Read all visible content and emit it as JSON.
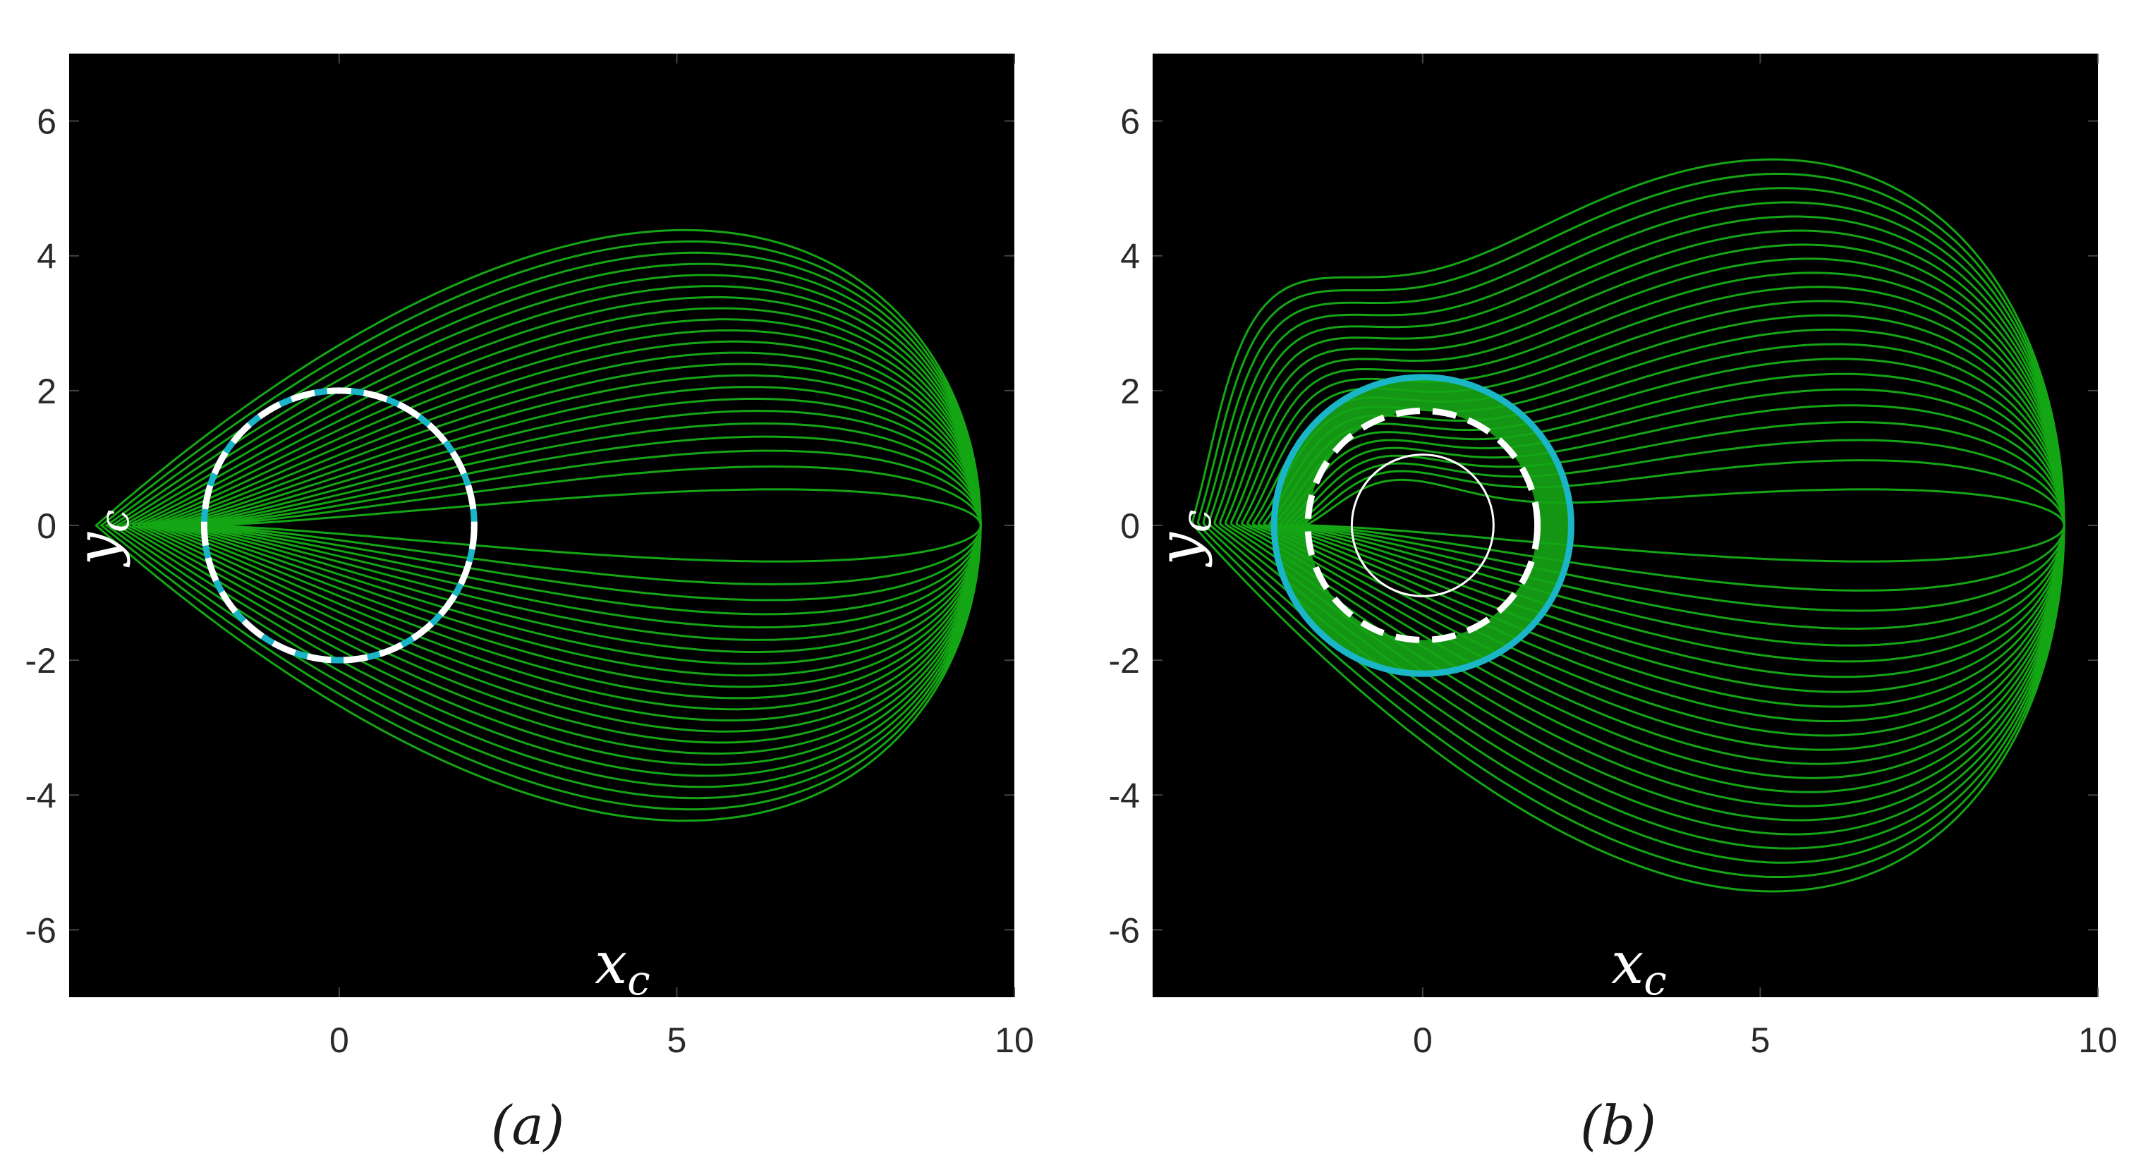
{
  "colors": {
    "background": "#000000",
    "trajectory": "#14a614",
    "trajectory_band": "#149614",
    "cyan_circle": "#1ab6c8",
    "dashed_circle": "#ffffff",
    "inner_circle": "#ffffff"
  },
  "chart_data": [
    {
      "type": "line",
      "panel_label": "(a)",
      "xlabel_var": "x",
      "xlabel_sub": "c",
      "ylabel_var": "y",
      "ylabel_sub": "c",
      "xlim": [
        -4,
        10
      ],
      "ylim": [
        -7,
        7
      ],
      "xticks": [
        0,
        5,
        10
      ],
      "yticks": [
        -6,
        -4,
        -2,
        0,
        2,
        4,
        6
      ],
      "tick_labels_x": [
        "0",
        "5",
        "10"
      ],
      "tick_labels_y": [
        "-6",
        "-4",
        "-2",
        "0",
        "2",
        "4",
        "6"
      ],
      "grid": false,
      "background": "#000000",
      "trajectory_family": {
        "apex": [
          9.5,
          0
        ],
        "count": 22,
        "extent_min": 2.0,
        "extent_max": 3.6,
        "max_half_width": 3.55,
        "curl": false
      },
      "circles": [
        {
          "kind": "cyan",
          "center": [
            0,
            0
          ],
          "radius": 2.0
        },
        {
          "kind": "white-dashed",
          "center": [
            0,
            0
          ],
          "radius": 2.0
        }
      ]
    },
    {
      "type": "line",
      "panel_label": "(b)",
      "xlabel_var": "x",
      "xlabel_sub": "c",
      "ylabel_var": "y",
      "ylabel_sub": "c",
      "xlim": [
        -4,
        10
      ],
      "ylim": [
        -7,
        7
      ],
      "xticks": [
        0,
        5,
        10
      ],
      "yticks": [
        -6,
        -4,
        -2,
        0,
        2,
        4,
        6
      ],
      "tick_labels_x": [
        "0",
        "5",
        "10"
      ],
      "tick_labels_y": [
        "-6",
        "-4",
        "-2",
        "0",
        "2",
        "4",
        "6"
      ],
      "grid": false,
      "background": "#000000",
      "trajectory_family": {
        "apex": [
          9.5,
          0
        ],
        "count": 22,
        "extent_min": 1.7,
        "extent_max": 3.4,
        "max_half_width": 4.4,
        "curl": true
      },
      "filled_band": {
        "center": [
          0,
          0
        ],
        "inner_radius": 1.7,
        "outer_radius": 2.2
      },
      "circles": [
        {
          "kind": "cyan",
          "center": [
            0,
            0
          ],
          "radius": 2.2
        },
        {
          "kind": "white-dashed",
          "center": [
            0,
            0
          ],
          "radius": 1.7
        },
        {
          "kind": "white-thin",
          "center": [
            0,
            0
          ],
          "radius": 1.05
        }
      ]
    }
  ]
}
